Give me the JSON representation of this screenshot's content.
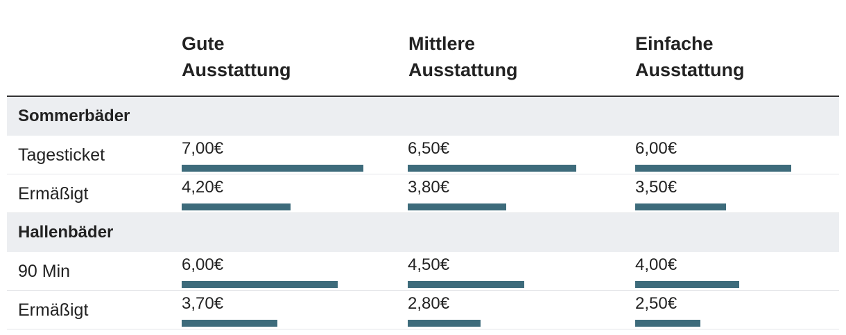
{
  "chart_data": {
    "type": "table",
    "columns": [
      "Gute Ausstattung",
      "Mittlere Ausstattung",
      "Einfache Ausstattung"
    ],
    "column_lines": [
      [
        "Gute",
        "Ausstattung"
      ],
      [
        "Mittlere",
        "Ausstattung"
      ],
      [
        "Einfache",
        "Ausstattung"
      ]
    ],
    "bar_color": "#3d6b7b",
    "value_max": 7.0,
    "groups": [
      {
        "name": "Sommerbäder",
        "rows": [
          {
            "label": "Tagesticket",
            "values": [
              7.0,
              6.5,
              6.0
            ],
            "display": [
              "7,00€",
              "6,50€",
              "6,00€"
            ]
          },
          {
            "label": "Ermäßigt",
            "values": [
              4.2,
              3.8,
              3.5
            ],
            "display": [
              "4,20€",
              "3,80€",
              "3,50€"
            ]
          }
        ]
      },
      {
        "name": "Hallenbäder",
        "rows": [
          {
            "label": "90 Min",
            "values": [
              6.0,
              4.5,
              4.0
            ],
            "display": [
              "6,00€",
              "4,50€",
              "4,00€"
            ]
          },
          {
            "label": "Ermäßigt",
            "values": [
              3.7,
              2.8,
              2.5
            ],
            "display": [
              "3,70€",
              "2,80€",
              "2,50€"
            ]
          }
        ]
      }
    ]
  }
}
